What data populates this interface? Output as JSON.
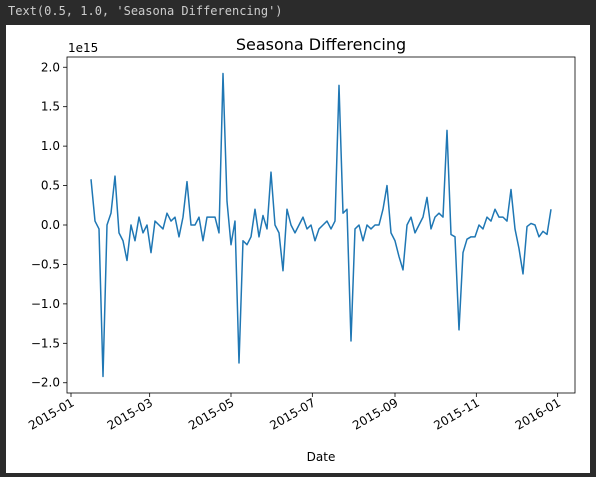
{
  "output_text": "Text(0.5, 1.0, 'Seasona Differencing')",
  "chart_data": {
    "type": "line",
    "title": "Seasona Differencing",
    "xlabel": "Date",
    "y_offset_label": "1e15",
    "color": "#1f77b4",
    "xlim": [
      -3,
      378
    ],
    "xticks": [
      {
        "value": 0,
        "label": "2015-01"
      },
      {
        "value": 59,
        "label": "2015-03"
      },
      {
        "value": 120,
        "label": "2015-05"
      },
      {
        "value": 181,
        "label": "2015-07"
      },
      {
        "value": 243,
        "label": "2015-09"
      },
      {
        "value": 304,
        "label": "2015-11"
      },
      {
        "value": 365,
        "label": "2016-01"
      }
    ],
    "ylim": [
      -2.13,
      2.13
    ],
    "yticks": [
      {
        "value": -2,
        "label": "−2.0"
      },
      {
        "value": -1.5,
        "label": "−1.5"
      },
      {
        "value": -1,
        "label": "−1.0"
      },
      {
        "value": -0.5,
        "label": "−0.5"
      },
      {
        "value": 0,
        "label": "0.0"
      },
      {
        "value": 0.5,
        "label": "0.5"
      },
      {
        "value": 1,
        "label": "1.0"
      },
      {
        "value": 1.5,
        "label": "1.5"
      },
      {
        "value": 2,
        "label": "2.0"
      }
    ],
    "x": [
      15,
      18,
      21,
      24,
      27,
      30,
      33,
      36,
      39,
      42,
      45,
      48,
      51,
      54,
      57,
      60,
      63,
      66,
      69,
      72,
      75,
      78,
      81,
      84,
      87,
      90,
      93,
      96,
      99,
      102,
      105,
      108,
      111,
      114,
      117,
      120,
      123,
      126,
      129,
      132,
      135,
      138,
      141,
      144,
      147,
      150,
      153,
      156,
      159,
      162,
      165,
      168,
      171,
      174,
      177,
      180,
      183,
      186,
      189,
      192,
      195,
      198,
      201,
      204,
      207,
      210,
      213,
      216,
      219,
      222,
      225,
      228,
      231,
      234,
      237,
      240,
      243,
      246,
      249,
      252,
      255,
      258,
      261,
      264,
      267,
      270,
      273,
      276,
      279,
      282,
      285,
      288,
      291,
      294,
      297,
      300,
      303,
      306,
      309,
      312,
      315,
      318,
      321,
      324,
      327,
      330,
      333,
      336,
      339,
      342,
      345,
      348,
      351,
      354,
      357,
      360
    ],
    "values": [
      0.58,
      0.05,
      -0.05,
      -1.92,
      0.0,
      0.15,
      0.62,
      -0.1,
      -0.2,
      -0.45,
      0.0,
      -0.2,
      0.1,
      -0.1,
      0.0,
      -0.35,
      0.05,
      0.0,
      -0.05,
      0.15,
      0.05,
      0.1,
      -0.15,
      0.1,
      0.55,
      0.0,
      0.0,
      0.1,
      -0.2,
      0.1,
      0.1,
      0.1,
      -0.1,
      1.92,
      0.3,
      -0.25,
      0.05,
      -1.75,
      -0.2,
      -0.25,
      -0.15,
      0.2,
      -0.15,
      0.12,
      -0.05,
      0.67,
      0.0,
      -0.1,
      -0.58,
      0.2,
      0.0,
      -0.1,
      0.0,
      0.1,
      -0.05,
      0.0,
      -0.2,
      -0.05,
      0.0,
      0.05,
      -0.05,
      0.05,
      1.77,
      0.15,
      0.2,
      -1.47,
      -0.05,
      0.0,
      -0.2,
      0.0,
      -0.05,
      0.0,
      0.0,
      0.2,
      0.5,
      -0.1,
      -0.2,
      -0.4,
      -0.57,
      0.0,
      0.1,
      -0.1,
      0.0,
      0.1,
      0.35,
      -0.05,
      0.1,
      0.15,
      0.1,
      1.2,
      -0.12,
      -0.15,
      -1.33,
      -0.35,
      -0.18,
      -0.15,
      -0.15,
      0.0,
      -0.05,
      0.1,
      0.05,
      0.2,
      0.1,
      0.1,
      0.05,
      0.45,
      -0.05,
      -0.3,
      -0.62,
      -0.02,
      0.02,
      0.0,
      -0.15,
      -0.08,
      -0.12,
      0.2
    ]
  }
}
